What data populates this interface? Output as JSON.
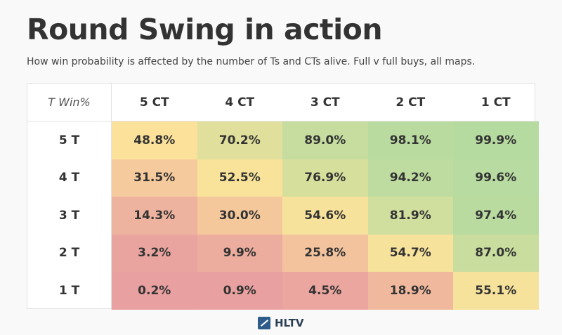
{
  "title": "Round Swing in action",
  "subtitle": "How win probability is affected by the number of Ts and CTs alive. Full v full buys, all maps.",
  "corner_label": "T Win%",
  "logo_text": "HLTV",
  "colors": {
    "low": "#e8a0a0",
    "mid": "#fde39a",
    "high": "#b6dba0"
  },
  "chart_data": {
    "type": "heatmap",
    "title": "Round Swing in action",
    "columns": [
      "5 CT",
      "4 CT",
      "3 CT",
      "2 CT",
      "1 CT"
    ],
    "rows": [
      "5 T",
      "4 T",
      "3 T",
      "2 T",
      "1 T"
    ],
    "values": [
      [
        48.8,
        70.2,
        89.0,
        98.1,
        99.9
      ],
      [
        31.5,
        52.5,
        76.9,
        94.2,
        99.6
      ],
      [
        14.3,
        30.0,
        54.6,
        81.9,
        97.4
      ],
      [
        3.2,
        9.9,
        25.8,
        54.7,
        87.0
      ],
      [
        0.2,
        0.9,
        4.5,
        18.9,
        55.1
      ]
    ],
    "labels": [
      [
        "48.8%",
        "70.2%",
        "89.0%",
        "98.1%",
        "99.9%"
      ],
      [
        "31.5%",
        "52.5%",
        "76.9%",
        "94.2%",
        "99.6%"
      ],
      [
        "14.3%",
        "30.0%",
        "54.6%",
        "81.9%",
        "97.4%"
      ],
      [
        "3.2%",
        "9.9%",
        "25.8%",
        "54.7%",
        "87.0%"
      ],
      [
        "0.2%",
        "0.9%",
        "4.5%",
        "18.9%",
        "55.1%"
      ]
    ]
  }
}
